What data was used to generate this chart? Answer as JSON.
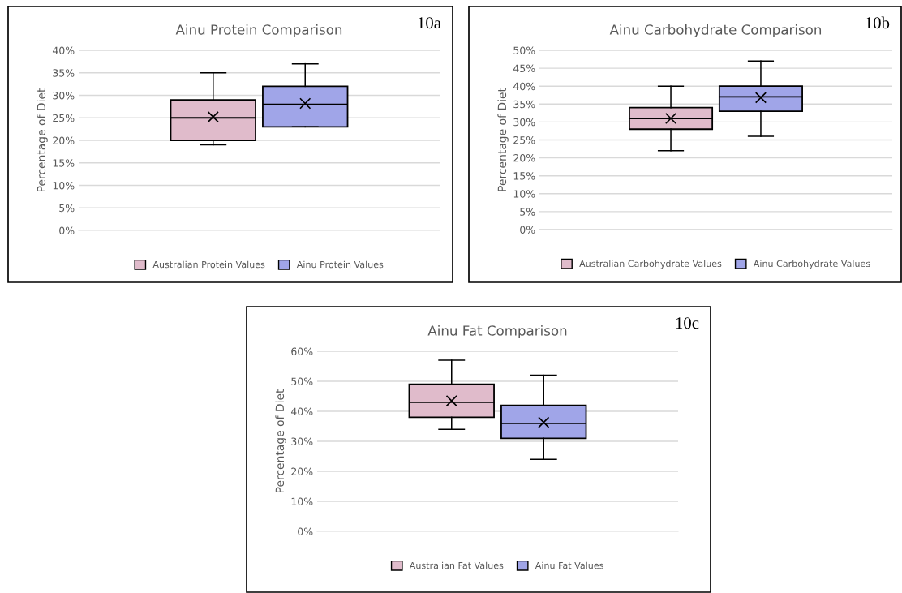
{
  "chart_data": [
    {
      "type": "box",
      "title": "Ainu Protein Comparison",
      "ylabel": "Percentage of Diet",
      "annotations": [
        "10a"
      ],
      "categories": [
        null
      ],
      "ylim": [
        0,
        40
      ],
      "yticks": [
        {
          "value": 0,
          "label": "0%"
        },
        {
          "value": 5,
          "label": "5%"
        },
        {
          "value": 10,
          "label": "10%"
        },
        {
          "value": 15,
          "label": "15%"
        },
        {
          "value": 20,
          "label": "20%"
        },
        {
          "value": 25,
          "label": "25%"
        },
        {
          "value": 30,
          "label": "30%"
        },
        {
          "value": 35,
          "label": "35%"
        },
        {
          "value": 40,
          "label": "40%"
        }
      ],
      "grid": "y",
      "legend": "bottom",
      "series": [
        {
          "name": "Australian Protein Values",
          "color": "#e0bbcb",
          "boxes": [
            {
              "low": 19,
              "q1": 20,
              "median": 25,
              "q3": 29,
              "high": 35,
              "mean": 25.2
            }
          ]
        },
        {
          "name": "Ainu Protein Values",
          "color": "#a0a5e8",
          "boxes": [
            {
              "low": 23,
              "q1": 23,
              "median": 28,
              "q3": 32,
              "high": 37,
              "mean": 28.2
            }
          ]
        }
      ]
    },
    {
      "type": "box",
      "title": "Ainu Carbohydrate Comparison",
      "ylabel": "Percentage of Diet",
      "annotations": [
        "10b"
      ],
      "categories": [
        null
      ],
      "ylim": [
        0,
        50
      ],
      "yticks": [
        {
          "value": 0,
          "label": "0%"
        },
        {
          "value": 5,
          "label": "5%"
        },
        {
          "value": 10,
          "label": "10%"
        },
        {
          "value": 15,
          "label": "15%"
        },
        {
          "value": 20,
          "label": "20%"
        },
        {
          "value": 25,
          "label": "25%"
        },
        {
          "value": 30,
          "label": "30%"
        },
        {
          "value": 35,
          "label": "35%"
        },
        {
          "value": 40,
          "label": "40%"
        },
        {
          "value": 45,
          "label": "45%"
        },
        {
          "value": 50,
          "label": "50%"
        }
      ],
      "grid": "y",
      "legend": "bottom",
      "series": [
        {
          "name": "Australian Carbohydrate Values",
          "color": "#e0bbcb",
          "boxes": [
            {
              "low": 22,
              "q1": 28,
              "median": 31,
              "q3": 34,
              "high": 40,
              "mean": 31
            }
          ]
        },
        {
          "name": "Ainu Carbohydrate Values",
          "color": "#a0a5e8",
          "boxes": [
            {
              "low": 26,
              "q1": 33,
              "median": 37,
              "q3": 40,
              "high": 47,
              "mean": 36.8
            }
          ]
        }
      ]
    },
    {
      "type": "box",
      "title": "Ainu Fat Comparison",
      "ylabel": "Percentage of Diet",
      "annotations": [
        "10c"
      ],
      "categories": [
        null
      ],
      "ylim": [
        0,
        60
      ],
      "yticks": [
        {
          "value": 0,
          "label": "0%"
        },
        {
          "value": 10,
          "label": "10%"
        },
        {
          "value": 20,
          "label": "20%"
        },
        {
          "value": 30,
          "label": "30%"
        },
        {
          "value": 40,
          "label": "40%"
        },
        {
          "value": 50,
          "label": "50%"
        },
        {
          "value": 60,
          "label": "60%"
        }
      ],
      "grid": "y",
      "legend": "bottom",
      "series": [
        {
          "name": "Australian Fat Values",
          "color": "#e0bbcb",
          "boxes": [
            {
              "low": 34,
              "q1": 38,
              "median": 43,
              "q3": 49,
              "high": 57,
              "mean": 43.5
            }
          ]
        },
        {
          "name": "Ainu Fat Values",
          "color": "#a0a5e8",
          "boxes": [
            {
              "low": 24,
              "q1": 31,
              "median": 36,
              "q3": 42,
              "high": 52,
              "mean": 36.3
            }
          ]
        }
      ]
    }
  ]
}
